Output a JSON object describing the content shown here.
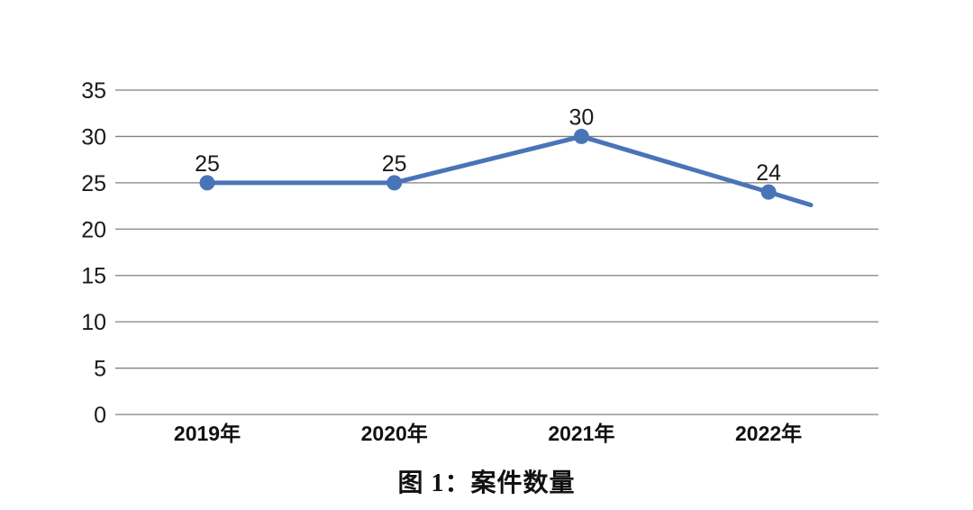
{
  "caption": "图 1：案件数量",
  "colors": {
    "line": "#4a74b8",
    "marker": "#4a74b8",
    "gridline": "#808080",
    "text": "#1a1a1a",
    "background": "#ffffff"
  },
  "chart_data": {
    "type": "line",
    "categories": [
      "2019年",
      "2020年",
      "2021年",
      "2022年"
    ],
    "series": [
      {
        "name": "案件数量",
        "values": [
          25,
          25,
          30,
          24
        ]
      }
    ],
    "data_labels": [
      "25",
      "25",
      "30",
      "24"
    ],
    "line_tail_value": 22.6,
    "yticks": [
      0,
      5,
      10,
      15,
      20,
      25,
      30,
      35
    ],
    "ylim": [
      0,
      35
    ],
    "title": "图 1：案件数量",
    "xlabel": "",
    "ylabel": "",
    "grid": "horizontal",
    "legend": "none",
    "marker": "circle"
  }
}
